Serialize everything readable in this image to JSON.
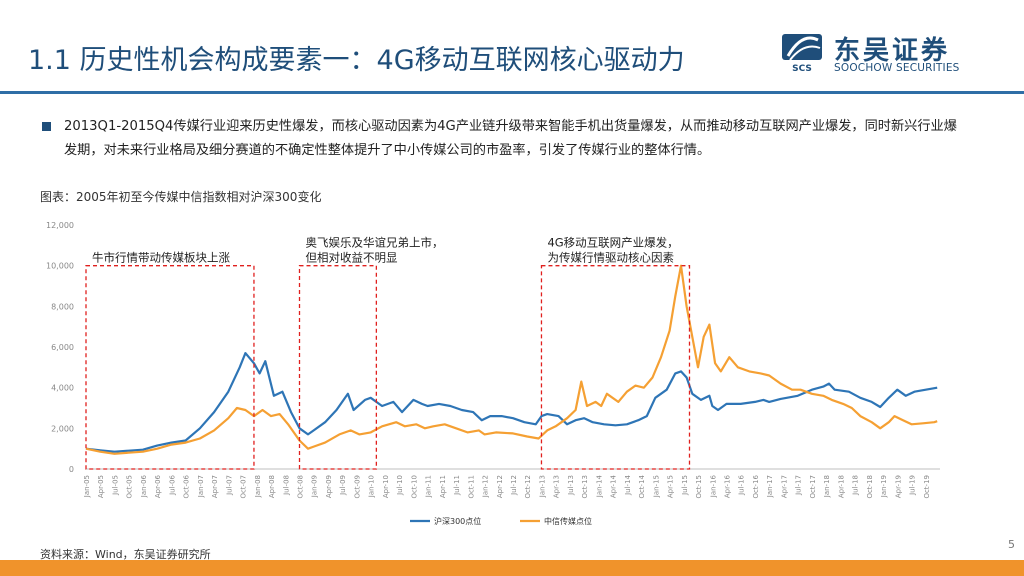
{
  "header": {
    "title": "1.1 历史性机会构成要素一：4G移动互联网核心驱动力",
    "logo_cn": "东吴证券",
    "logo_en": "SOOCHOW SECURITIES",
    "logo_mark": "SCS",
    "brand_color": "#1f4e7a"
  },
  "body": {
    "paragraph": "2013Q1-2015Q4传媒行业迎来历史性爆发，而核心驱动因素为4G产业链升级带来智能手机出货量爆发，从而推动移动互联网产业爆发，同时新兴行业爆发期，对未来行业格局及细分赛道的不确定性整体提升了中小传媒公司的市盈率，引发了传媒行业的整体行情。"
  },
  "figure": {
    "label": "图表：2005年初至今传媒中信指数相对沪深300变化",
    "source": "资料来源：Wind，东吴证券研究所"
  },
  "page_number": "5",
  "chart_data": {
    "type": "line",
    "title": "",
    "xlabel": "",
    "ylabel": "",
    "ylim": [
      0,
      12000
    ],
    "yticks": [
      "0",
      "2,000",
      "4,000",
      "6,000",
      "8,000",
      "10,000",
      "12,000"
    ],
    "grid": false,
    "legend_position": "bottom",
    "x_tick_labels": [
      "Jan-05",
      "Apr-05",
      "Jul-05",
      "Oct-05",
      "Jan-06",
      "Apr-06",
      "Jul-06",
      "Oct-06",
      "Jan-07",
      "Apr-07",
      "Jul-07",
      "Oct-07",
      "Jan-08",
      "Apr-08",
      "Jul-08",
      "Oct-08",
      "Jan-09",
      "Apr-09",
      "Jul-09",
      "Oct-09",
      "Jan-10",
      "Apr-10",
      "Jul-10",
      "Oct-10",
      "Jan-11",
      "Apr-11",
      "Jul-11",
      "Oct-11",
      "Jan-12",
      "Apr-12",
      "Jul-12",
      "Oct-12",
      "Jan-13",
      "Apr-13",
      "Jul-13",
      "Oct-13",
      "Jan-14",
      "Apr-14",
      "Jul-14",
      "Oct-14",
      "Jan-15",
      "Apr-15",
      "Jul-15",
      "Oct-15",
      "Jan-16",
      "Apr-16",
      "Jul-16",
      "Oct-16",
      "Jan-17",
      "Apr-17",
      "Jul-17",
      "Oct-17",
      "Jan-18",
      "Apr-18",
      "Jul-18",
      "Oct-18",
      "Jan-19",
      "Apr-19",
      "Jul-19",
      "Oct-19"
    ],
    "series": [
      {
        "name": "沪深300点位",
        "color": "#2e75b6",
        "points": [
          [
            2005.0,
            1000
          ],
          [
            2005.25,
            920
          ],
          [
            2005.5,
            850
          ],
          [
            2005.75,
            900
          ],
          [
            2006.0,
            950
          ],
          [
            2006.25,
            1150
          ],
          [
            2006.5,
            1300
          ],
          [
            2006.75,
            1400
          ],
          [
            2007.0,
            2000
          ],
          [
            2007.25,
            2800
          ],
          [
            2007.5,
            3800
          ],
          [
            2007.7,
            5000
          ],
          [
            2007.8,
            5700
          ],
          [
            2007.95,
            5200
          ],
          [
            2008.05,
            4700
          ],
          [
            2008.15,
            5300
          ],
          [
            2008.3,
            3600
          ],
          [
            2008.45,
            3800
          ],
          [
            2008.6,
            2800
          ],
          [
            2008.75,
            2000
          ],
          [
            2008.9,
            1700
          ],
          [
            2009.0,
            1900
          ],
          [
            2009.2,
            2300
          ],
          [
            2009.4,
            2900
          ],
          [
            2009.6,
            3700
          ],
          [
            2009.7,
            2900
          ],
          [
            2009.9,
            3400
          ],
          [
            2010.0,
            3500
          ],
          [
            2010.2,
            3100
          ],
          [
            2010.4,
            3300
          ],
          [
            2010.55,
            2800
          ],
          [
            2010.75,
            3400
          ],
          [
            2010.9,
            3200
          ],
          [
            2011.0,
            3100
          ],
          [
            2011.2,
            3200
          ],
          [
            2011.4,
            3100
          ],
          [
            2011.6,
            2900
          ],
          [
            2011.8,
            2800
          ],
          [
            2011.95,
            2400
          ],
          [
            2012.1,
            2600
          ],
          [
            2012.3,
            2600
          ],
          [
            2012.5,
            2500
          ],
          [
            2012.7,
            2300
          ],
          [
            2012.9,
            2200
          ],
          [
            2013.0,
            2600
          ],
          [
            2013.1,
            2700
          ],
          [
            2013.3,
            2600
          ],
          [
            2013.45,
            2200
          ],
          [
            2013.6,
            2400
          ],
          [
            2013.75,
            2500
          ],
          [
            2013.9,
            2300
          ],
          [
            2014.1,
            2200
          ],
          [
            2014.3,
            2150
          ],
          [
            2014.5,
            2200
          ],
          [
            2014.7,
            2400
          ],
          [
            2014.85,
            2600
          ],
          [
            2015.0,
            3500
          ],
          [
            2015.2,
            3900
          ],
          [
            2015.35,
            4700
          ],
          [
            2015.45,
            4800
          ],
          [
            2015.55,
            4500
          ],
          [
            2015.65,
            3700
          ],
          [
            2015.8,
            3400
          ],
          [
            2015.95,
            3600
          ],
          [
            2016.0,
            3100
          ],
          [
            2016.1,
            2900
          ],
          [
            2016.25,
            3200
          ],
          [
            2016.5,
            3200
          ],
          [
            2016.75,
            3300
          ],
          [
            2016.9,
            3400
          ],
          [
            2017.0,
            3300
          ],
          [
            2017.2,
            3450
          ],
          [
            2017.5,
            3600
          ],
          [
            2017.75,
            3900
          ],
          [
            2017.95,
            4050
          ],
          [
            2018.05,
            4200
          ],
          [
            2018.15,
            3900
          ],
          [
            2018.4,
            3800
          ],
          [
            2018.6,
            3500
          ],
          [
            2018.8,
            3300
          ],
          [
            2018.95,
            3050
          ],
          [
            2019.1,
            3500
          ],
          [
            2019.25,
            3900
          ],
          [
            2019.4,
            3600
          ],
          [
            2019.55,
            3800
          ],
          [
            2019.75,
            3900
          ],
          [
            2019.95,
            4000
          ]
        ]
      },
      {
        "name": "中信传媒点位",
        "color": "#f5a033",
        "points": [
          [
            2005.0,
            1000
          ],
          [
            2005.25,
            850
          ],
          [
            2005.5,
            750
          ],
          [
            2005.75,
            800
          ],
          [
            2006.0,
            850
          ],
          [
            2006.25,
            1000
          ],
          [
            2006.5,
            1200
          ],
          [
            2006.75,
            1300
          ],
          [
            2007.0,
            1500
          ],
          [
            2007.25,
            1900
          ],
          [
            2007.5,
            2500
          ],
          [
            2007.65,
            3000
          ],
          [
            2007.8,
            2900
          ],
          [
            2007.95,
            2600
          ],
          [
            2008.1,
            2900
          ],
          [
            2008.25,
            2600
          ],
          [
            2008.4,
            2700
          ],
          [
            2008.55,
            2200
          ],
          [
            2008.75,
            1400
          ],
          [
            2008.9,
            1000
          ],
          [
            2009.0,
            1100
          ],
          [
            2009.2,
            1300
          ],
          [
            2009.45,
            1700
          ],
          [
            2009.65,
            1900
          ],
          [
            2009.8,
            1700
          ],
          [
            2010.0,
            1800
          ],
          [
            2010.2,
            2100
          ],
          [
            2010.45,
            2300
          ],
          [
            2010.6,
            2100
          ],
          [
            2010.8,
            2200
          ],
          [
            2010.95,
            2000
          ],
          [
            2011.1,
            2100
          ],
          [
            2011.3,
            2200
          ],
          [
            2011.5,
            2000
          ],
          [
            2011.7,
            1800
          ],
          [
            2011.9,
            1900
          ],
          [
            2012.0,
            1700
          ],
          [
            2012.2,
            1800
          ],
          [
            2012.5,
            1750
          ],
          [
            2012.75,
            1600
          ],
          [
            2012.95,
            1500
          ],
          [
            2013.1,
            1900
          ],
          [
            2013.25,
            2100
          ],
          [
            2013.45,
            2500
          ],
          [
            2013.6,
            2900
          ],
          [
            2013.7,
            4300
          ],
          [
            2013.8,
            3100
          ],
          [
            2013.95,
            3300
          ],
          [
            2014.05,
            3100
          ],
          [
            2014.15,
            3700
          ],
          [
            2014.35,
            3300
          ],
          [
            2014.5,
            3800
          ],
          [
            2014.65,
            4100
          ],
          [
            2014.8,
            4000
          ],
          [
            2014.95,
            4500
          ],
          [
            2015.1,
            5500
          ],
          [
            2015.25,
            6800
          ],
          [
            2015.35,
            8500
          ],
          [
            2015.45,
            10000
          ],
          [
            2015.55,
            8000
          ],
          [
            2015.65,
            6500
          ],
          [
            2015.75,
            5000
          ],
          [
            2015.85,
            6500
          ],
          [
            2015.95,
            7100
          ],
          [
            2016.05,
            5200
          ],
          [
            2016.15,
            4800
          ],
          [
            2016.3,
            5500
          ],
          [
            2016.45,
            5000
          ],
          [
            2016.65,
            4800
          ],
          [
            2016.85,
            4700
          ],
          [
            2017.0,
            4600
          ],
          [
            2017.2,
            4200
          ],
          [
            2017.4,
            3900
          ],
          [
            2017.55,
            3900
          ],
          [
            2017.75,
            3700
          ],
          [
            2017.95,
            3600
          ],
          [
            2018.1,
            3400
          ],
          [
            2018.3,
            3200
          ],
          [
            2018.45,
            3000
          ],
          [
            2018.6,
            2600
          ],
          [
            2018.8,
            2300
          ],
          [
            2018.95,
            2000
          ],
          [
            2019.1,
            2300
          ],
          [
            2019.2,
            2600
          ],
          [
            2019.35,
            2400
          ],
          [
            2019.5,
            2200
          ],
          [
            2019.7,
            2250
          ],
          [
            2019.9,
            2300
          ],
          [
            2019.95,
            2350
          ]
        ]
      }
    ],
    "annotations": [
      {
        "lines": [
          "牛市行情带动传媒板块上涨"
        ],
        "range": [
          2005.0,
          2007.95
        ]
      },
      {
        "lines": [
          "奥飞娱乐及华谊兄弟上市，",
          "但相对收益不明显"
        ],
        "range": [
          2008.75,
          2010.1
        ]
      },
      {
        "lines": [
          "4G移动互联网产业爆发，",
          "为传媒行情驱动核心因素"
        ],
        "range": [
          2013.0,
          2015.6
        ]
      }
    ]
  }
}
